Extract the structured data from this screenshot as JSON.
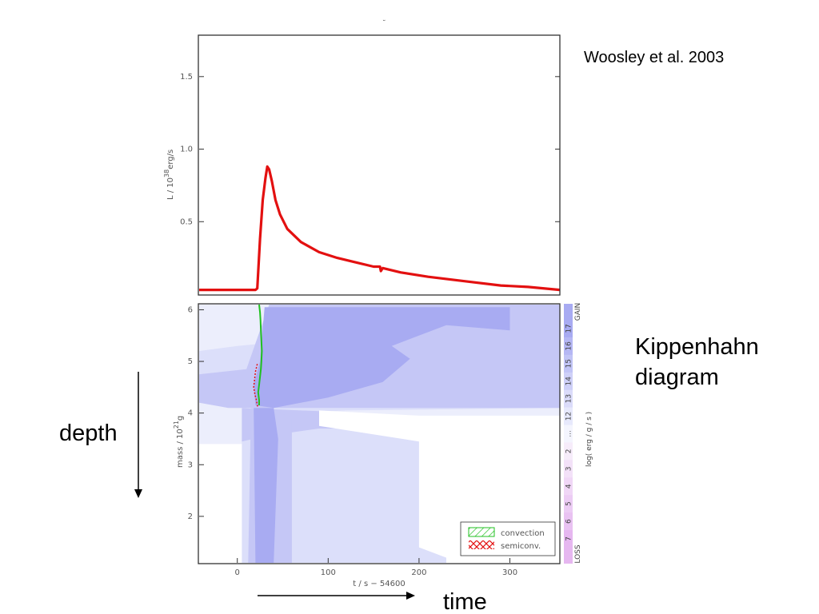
{
  "citation": "Woosley et al. 2003",
  "header_mark": "˘",
  "annotations": {
    "kippenhahn": [
      "Kippenhahn",
      "diagram"
    ],
    "depth": "depth",
    "time": "time"
  },
  "colors": {
    "curve": "#e31010",
    "convection": "#20c020",
    "semiconv": "#e31010",
    "gain_dark": "#a8abf2",
    "gain_mid": "#c5c7f6",
    "gain_light": "#dcdffa",
    "gain_faint": "#eceefc",
    "loss": "#e6b7f0"
  },
  "chart_data": [
    {
      "type": "line",
      "ylabel_prefix": "L / 10",
      "ylabel_sup": "38",
      "ylabel_suffix": "erg/s",
      "xlim": [
        -42,
        355
      ],
      "ylim": [
        0,
        1.78
      ],
      "yticks": [
        0.5,
        1.0,
        1.5
      ],
      "ytick_labels": [
        "0.5",
        "1.0",
        "1.5"
      ],
      "series": [
        {
          "x": [
            -42,
            0,
            20,
            22,
            25,
            28,
            31,
            33,
            35,
            38,
            42,
            47,
            55,
            70,
            90,
            110,
            130,
            150,
            157,
            158,
            160,
            180,
            210,
            250,
            290,
            320,
            355
          ],
          "y": [
            0.03,
            0.03,
            0.03,
            0.04,
            0.38,
            0.65,
            0.8,
            0.88,
            0.86,
            0.78,
            0.65,
            0.55,
            0.45,
            0.36,
            0.29,
            0.25,
            0.22,
            0.19,
            0.19,
            0.16,
            0.18,
            0.15,
            0.12,
            0.09,
            0.06,
            0.05,
            0.03
          ]
        }
      ]
    },
    {
      "type": "heatmap",
      "xlabel": "t / s − 54600",
      "ylabel_prefix": "mass / 10",
      "ylabel_sup": "21",
      "ylabel_suffix": "g",
      "xlim": [
        -42,
        355
      ],
      "ylim": [
        1.1,
        6.1
      ],
      "xticks": [
        0,
        100,
        200,
        300
      ],
      "xtick_labels": [
        "0",
        "100",
        "200",
        "300"
      ],
      "yticks": [
        2,
        3,
        4,
        5,
        6
      ],
      "ytick_labels": [
        "2",
        "3",
        "4",
        "5",
        "6"
      ],
      "legend": {
        "placement": "bottom-right",
        "entries": [
          {
            "label": "convection",
            "pattern": "hatch"
          },
          {
            "label": "semiconv.",
            "pattern": "crosshatch"
          }
        ]
      },
      "colorbar": {
        "label_top": "GAIN",
        "label_bottom": "LOSS",
        "axis_label": "log( erg / g / s )",
        "tick_labels": [
          "17",
          "16",
          "15",
          "14",
          "13",
          "12",
          "...",
          "2",
          "3",
          "4",
          "5",
          "6",
          "7"
        ]
      },
      "regions": [
        {
          "level": "faint",
          "points": [
            [
              -42,
              6.1
            ],
            [
              355,
              6.1
            ],
            [
              355,
              3.4
            ],
            [
              -42,
              3.4
            ]
          ]
        },
        {
          "level": "light",
          "points": [
            [
              -42,
              5.2
            ],
            [
              0,
              5.3
            ],
            [
              60,
              5.4
            ],
            [
              355,
              5.4
            ],
            [
              355,
              4.1
            ],
            [
              120,
              4.05
            ],
            [
              60,
              4.0
            ],
            [
              0,
              4.15
            ],
            [
              -42,
              4.2
            ]
          ]
        },
        {
          "level": "light",
          "points": [
            [
              5,
              3.9
            ],
            [
              90,
              3.85
            ],
            [
              150,
              3.65
            ],
            [
              230,
              3.45
            ],
            [
              230,
              1.1
            ],
            [
              5,
              1.1
            ]
          ]
        },
        {
          "level": "mid",
          "points": [
            [
              -42,
              4.75
            ],
            [
              10,
              4.85
            ],
            [
              25,
              5.6
            ],
            [
              35,
              6.1
            ],
            [
              355,
              6.1
            ],
            [
              355,
              4.1
            ],
            [
              -10,
              4.1
            ],
            [
              -42,
              4.2
            ]
          ]
        },
        {
          "level": "mid",
          "points": [
            [
              5,
              4.1
            ],
            [
              140,
              4.0
            ],
            [
              160,
              3.9
            ],
            [
              180,
              3.85
            ],
            [
              180,
              3.7
            ],
            [
              90,
              3.7
            ],
            [
              30,
              3.55
            ],
            [
              5,
              3.45
            ]
          ]
        },
        {
          "level": "mid",
          "points": [
            [
              15,
              4.1
            ],
            [
              35,
              4.1
            ],
            [
              60,
              3.9
            ],
            [
              60,
              1.1
            ],
            [
              12,
              1.1
            ]
          ]
        },
        {
          "level": "dark",
          "points": [
            [
              18,
              4.55
            ],
            [
              25,
              5.0
            ],
            [
              30,
              6.05
            ],
            [
              300,
              6.05
            ],
            [
              300,
              5.6
            ],
            [
              230,
              5.7
            ],
            [
              170,
              5.3
            ],
            [
              190,
              5.05
            ],
            [
              160,
              4.6
            ],
            [
              100,
              4.3
            ],
            [
              40,
              4.1
            ],
            [
              20,
              4.15
            ]
          ]
        },
        {
          "level": "dark",
          "points": [
            [
              18,
              4.1
            ],
            [
              40,
              4.1
            ],
            [
              45,
              3.5
            ],
            [
              40,
              1.1
            ],
            [
              20,
              1.1
            ]
          ]
        },
        {
          "level": "white",
          "points": [
            [
              90,
              4.05
            ],
            [
              200,
              3.95
            ],
            [
              355,
              3.95
            ],
            [
              355,
              1.1
            ],
            [
              245,
              1.1
            ],
            [
              200,
              1.4
            ],
            [
              200,
              3.45
            ],
            [
              90,
              3.75
            ]
          ]
        }
      ],
      "convection": {
        "x": [
          24,
          25,
          25.5,
          26,
          26.5,
          27,
          26.5,
          26,
          25,
          24,
          23,
          24,
          24
        ],
        "y": [
          6.1,
          5.95,
          5.8,
          5.6,
          5.4,
          5.2,
          5.0,
          4.85,
          4.7,
          4.55,
          4.4,
          4.25,
          4.15
        ]
      },
      "semiconv": {
        "x": [
          22,
          20,
          19,
          18,
          19.5,
          21,
          22,
          23
        ],
        "y": [
          4.95,
          4.8,
          4.65,
          4.5,
          4.35,
          4.25,
          4.15,
          4.1
        ]
      }
    }
  ]
}
